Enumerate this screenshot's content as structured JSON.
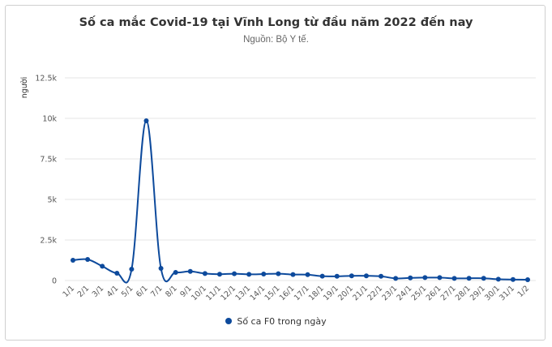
{
  "chart_data": {
    "type": "line",
    "title": "Số ca mắc Covid-19 tại Vĩnh Long từ đầu năm 2022 đến nay",
    "subtitle": "Nguồn: Bộ Y tế.",
    "ylabel": "người",
    "xlabel": "",
    "ylim": [
      0,
      12500
    ],
    "yticks": [
      0,
      2500,
      5000,
      7500,
      10000,
      12500
    ],
    "ytick_labels": [
      "0",
      "2.5k",
      "5k",
      "7.5k",
      "10k",
      "12.5k"
    ],
    "categories": [
      "1/1",
      "2/1",
      "3/1",
      "4/1",
      "5/1",
      "6/1",
      "7/1",
      "8/1",
      "9/1",
      "10/1",
      "11/1",
      "12/1",
      "13/1",
      "14/1",
      "15/1",
      "16/1",
      "17/1",
      "18/1",
      "19/1",
      "20/1",
      "21/1",
      "22/1",
      "23/1",
      "24/1",
      "25/1",
      "26/1",
      "27/1",
      "28/1",
      "29/1",
      "30/1",
      "31/1",
      "1/2"
    ],
    "series": [
      {
        "name": "Số ca F0 trong ngày",
        "color": "#0d4a9c",
        "values": [
          1250,
          1300,
          880,
          450,
          700,
          9850,
          750,
          500,
          560,
          430,
          390,
          420,
          380,
          400,
          420,
          370,
          360,
          270,
          260,
          290,
          290,
          260,
          130,
          160,
          180,
          180,
          130,
          140,
          140,
          80,
          60,
          50
        ]
      }
    ],
    "grid": true,
    "legend_position": "bottom-center"
  }
}
